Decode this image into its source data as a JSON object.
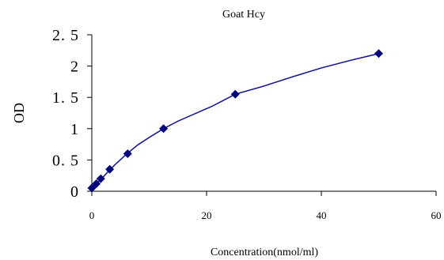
{
  "chart_data": {
    "type": "scatter",
    "title": "Goat Hcy",
    "xlabel": "Concentration(nmol/ml)",
    "ylabel": "OD",
    "xlim": [
      0,
      60
    ],
    "ylim": [
      0,
      2.5
    ],
    "x_ticks": [
      0,
      20,
      40,
      60
    ],
    "y_ticks": [
      0,
      0.5,
      1,
      1.5,
      2,
      2.5
    ],
    "y_tick_labels": [
      "0",
      "0. 5",
      "1",
      "1. 5",
      "2",
      "2. 5"
    ],
    "grid": false,
    "series": [
      {
        "points": [
          {
            "x": 0,
            "y": 0.05
          },
          {
            "x": 0.78,
            "y": 0.12
          },
          {
            "x": 1.56,
            "y": 0.2
          },
          {
            "x": 3.125,
            "y": 0.35
          },
          {
            "x": 6.25,
            "y": 0.6
          },
          {
            "x": 12.5,
            "y": 1.0
          },
          {
            "x": 25,
            "y": 1.55
          },
          {
            "x": 50,
            "y": 2.2
          }
        ],
        "marker": "diamond",
        "color": "#00007a"
      }
    ],
    "fit_curve": [
      [
        0,
        0.05
      ],
      [
        1,
        0.14
      ],
      [
        2,
        0.23
      ],
      [
        3,
        0.33
      ],
      [
        4,
        0.42
      ],
      [
        6,
        0.59
      ],
      [
        8,
        0.74
      ],
      [
        10,
        0.86
      ],
      [
        12.5,
        1.0
      ],
      [
        15,
        1.12
      ],
      [
        18,
        1.24
      ],
      [
        21,
        1.36
      ],
      [
        25,
        1.55
      ],
      [
        30,
        1.68
      ],
      [
        35,
        1.83
      ],
      [
        40,
        1.97
      ],
      [
        45,
        2.09
      ],
      [
        50,
        2.2
      ]
    ]
  }
}
